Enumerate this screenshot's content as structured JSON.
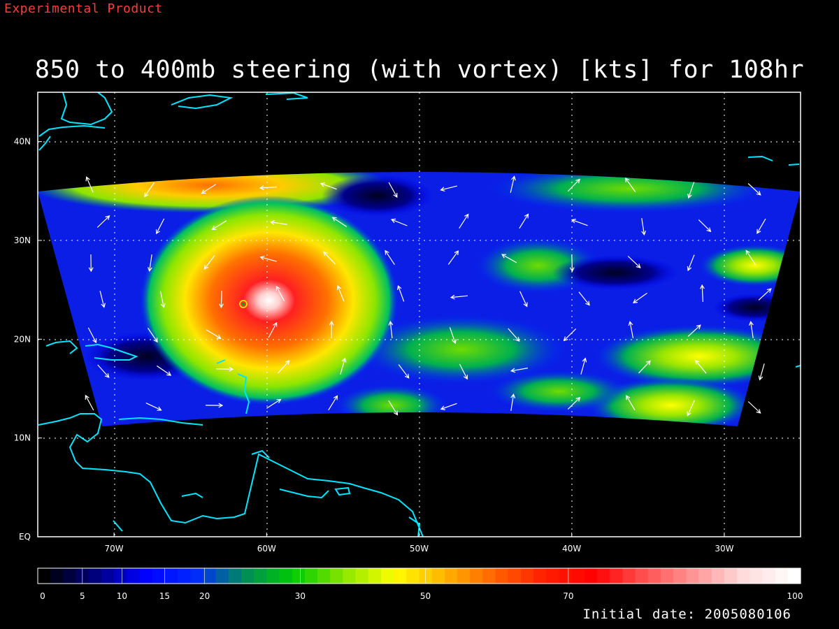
{
  "header": {
    "product_label": "Experimental Product",
    "title": "850 to 400mb steering (with vortex) [kts] for 108hr"
  },
  "footer": {
    "initial_date": "Initial date: 2005080106"
  },
  "map": {
    "lon_range": [
      -75,
      -25
    ],
    "lat_range": [
      0,
      45
    ],
    "lon_ticks": [
      {
        "lon": -70,
        "label": "70W"
      },
      {
        "lon": -60,
        "label": "60W"
      },
      {
        "lon": -50,
        "label": "50W"
      },
      {
        "lon": -40,
        "label": "40W"
      },
      {
        "lon": -30,
        "label": "30W"
      }
    ],
    "lat_ticks": [
      {
        "lat": 0,
        "label": "EQ"
      },
      {
        "lat": 10,
        "label": "10N"
      },
      {
        "lat": 20,
        "label": "20N"
      },
      {
        "lat": 30,
        "label": "30N"
      },
      {
        "lat": 40,
        "label": "40N"
      }
    ],
    "gridlines": true,
    "coastline_color": "#00e5ff",
    "background_color": "#000000",
    "vortex_center": {
      "lon": -61.5,
      "lat": 23.5
    },
    "vector_color": "#ffffff"
  },
  "colorbar": {
    "range": [
      0,
      100
    ],
    "ticks": [
      {
        "value": 0,
        "label": "0"
      },
      {
        "value": 5,
        "label": "5"
      },
      {
        "value": 10,
        "label": "10"
      },
      {
        "value": 15,
        "label": "15"
      },
      {
        "value": 20,
        "label": "20"
      },
      {
        "value": 30,
        "label": "30"
      },
      {
        "value": 50,
        "label": "50"
      },
      {
        "value": 70,
        "label": "70"
      },
      {
        "value": 100,
        "label": "100"
      }
    ],
    "colors": [
      "#000000",
      "#00007a",
      "#0000ff",
      "#0028ff",
      "#008c5a",
      "#00cc00",
      "#8ce600",
      "#ffff00",
      "#ffb400",
      "#ff6400",
      "#ff1e00",
      "#ff0000",
      "#ff5050",
      "#ff9696",
      "#ffdcdc",
      "#ffffff"
    ]
  },
  "units": "kts"
}
